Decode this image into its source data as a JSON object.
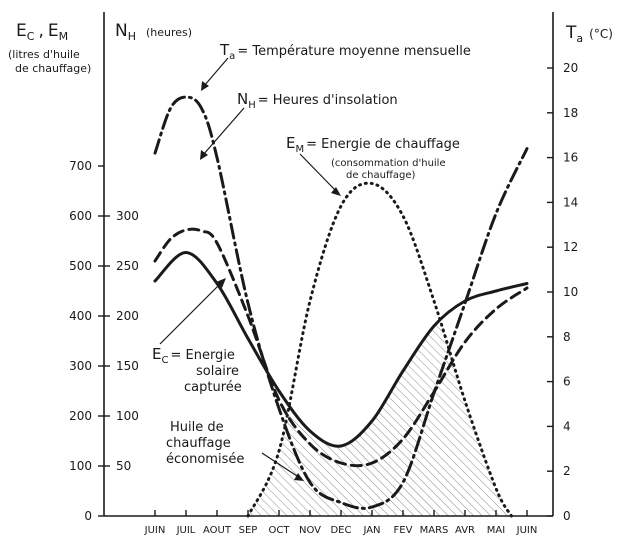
{
  "chart_data": {
    "type": "line",
    "x_categories": [
      "JUIN",
      "JUIL",
      "AOUT",
      "SEP",
      "OCT",
      "NOV",
      "DEC",
      "JAN",
      "FEV",
      "MARS",
      "AVR",
      "MAI",
      "JUIN"
    ],
    "axes": {
      "left_outer": {
        "label_main": "E",
        "sub1": "C",
        "sep": ",",
        "label_main2": "E",
        "sub2": "M",
        "note": "(litres d'huile",
        "note2": "de chauffage)",
        "range": [
          0,
          750
        ],
        "ticks": [
          0,
          100,
          200,
          300,
          400,
          500,
          600,
          700
        ]
      },
      "left_inner": {
        "label_main": "N",
        "sub": "H",
        "unit": "(heures)",
        "range": [
          0,
          375
        ],
        "ticks": [
          50,
          100,
          150,
          200,
          250,
          300
        ]
      },
      "right": {
        "label_main": "T",
        "sub": "a",
        "unit": "(°C)",
        "range": [
          0,
          21
        ],
        "ticks": [
          0,
          2,
          4,
          6,
          8,
          10,
          12,
          14,
          16,
          18,
          20
        ]
      }
    },
    "series": [
      {
        "key": "Ta",
        "axis": "right",
        "dash": "dashdot",
        "x": [
          0,
          0.5,
          1,
          1.5,
          2,
          3,
          4,
          5,
          6,
          7,
          8,
          9,
          10,
          11,
          12
        ],
        "y": [
          16.2,
          18.2,
          18.7,
          18.2,
          16.0,
          9.5,
          4.8,
          1.5,
          0.6,
          0.4,
          1.5,
          5.5,
          9.5,
          13.5,
          16.4
        ]
      },
      {
        "key": "NH",
        "axis": "left_inner",
        "dash": "dashed",
        "x": [
          0,
          0.5,
          1,
          1.5,
          2,
          3,
          4,
          5,
          6,
          7,
          8,
          9,
          10,
          11,
          12
        ],
        "y": [
          255,
          277,
          286,
          285,
          273,
          200,
          116,
          72,
          53,
          53,
          77,
          124,
          174,
          207,
          228
        ]
      },
      {
        "key": "EC",
        "axis": "left_outer",
        "dash": "solid",
        "x": [
          0,
          1,
          2,
          3,
          4,
          5,
          6,
          7,
          8,
          9,
          10,
          11,
          12
        ],
        "y": [
          470,
          527,
          465,
          355,
          250,
          170,
          140,
          190,
          290,
          380,
          430,
          450,
          465
        ]
      },
      {
        "key": "EM",
        "axis": "left_outer",
        "dash": "dotted",
        "x": [
          3,
          4,
          5,
          6,
          7,
          8,
          9,
          10,
          11,
          11.5
        ],
        "y": [
          0,
          130,
          430,
          620,
          665,
          600,
          430,
          230,
          55,
          0
        ]
      }
    ],
    "saved_area_label": [
      "Huile de",
      "chauffage",
      "économisée"
    ],
    "annotations": {
      "Ta": {
        "symbol": "T",
        "sub": "a",
        "text": "= Température moyenne mensuelle"
      },
      "NH": {
        "symbol": "N",
        "sub": "H",
        "text": "= Heures d'insolation"
      },
      "EM": {
        "symbol": "E",
        "sub": "M",
        "text": "= Energie de chauffage",
        "note1": "(consommation d'huile",
        "note2": "de chauffage)"
      },
      "EC": {
        "symbol": "E",
        "sub": "C",
        "text": "= Energie",
        "line2": "solaire",
        "line3": "capturée"
      }
    }
  }
}
